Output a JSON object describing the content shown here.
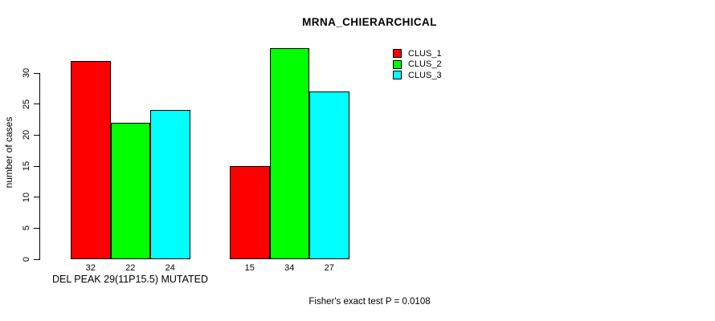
{
  "chart_data": {
    "type": "bar",
    "title": "MRNA_CHIERARCHICAL",
    "ylabel": "number of cases",
    "xlabel": "DEL PEAK 29(11P15.5) MUTATED",
    "annotation": "Fisher's exact test P = 0.0108",
    "ylim": [
      0,
      30
    ],
    "yticks": [
      0,
      5,
      10,
      15,
      20,
      25,
      30
    ],
    "grid": false,
    "legend_position": "top-right",
    "group_count": 2,
    "series": [
      {
        "name": "CLUS_1",
        "color": "#ff0000",
        "values": [
          32,
          15
        ]
      },
      {
        "name": "CLUS_2",
        "color": "#00ff00",
        "values": [
          22,
          34
        ]
      },
      {
        "name": "CLUS_3",
        "color": "#00ffff",
        "values": [
          24,
          27
        ]
      }
    ],
    "bar_value_labels": [
      [
        32,
        22,
        24
      ],
      [
        15,
        34,
        27
      ]
    ]
  }
}
